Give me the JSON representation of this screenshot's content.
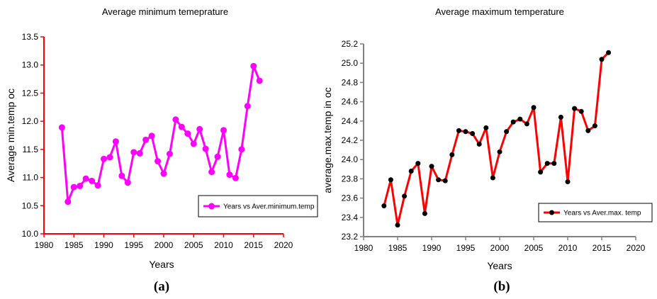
{
  "chart_data": [
    {
      "type": "line",
      "title": "Average minimum temeprature",
      "xlabel": "Years",
      "ylabel": "Average min.temp oc",
      "xlim": [
        1980,
        2020
      ],
      "ylim": [
        10.0,
        13.5
      ],
      "xticks": [
        "1980",
        "1985",
        "1990",
        "1995",
        "2000",
        "2005",
        "2010",
        "2015",
        "2020"
      ],
      "yticks": [
        "10.0",
        "10.5",
        "11.0",
        "11.5",
        "12.0",
        "12.5",
        "13.0",
        "13.5"
      ],
      "grid": false,
      "legend_position": "lower-right",
      "color": "#ff00ff",
      "axis_color": "#ff0000",
      "marker": "circle",
      "caption": "(a)",
      "series": [
        {
          "name": "Years vs Aver.minimum.temp",
          "x": [
            1983,
            1984,
            1985,
            1986,
            1987,
            1988,
            1989,
            1990,
            1991,
            1992,
            1993,
            1994,
            1995,
            1996,
            1997,
            1998,
            1999,
            2000,
            2001,
            2002,
            2003,
            2004,
            2005,
            2006,
            2007,
            2008,
            2009,
            2010,
            2011,
            2012,
            2013,
            2014,
            2015,
            2016
          ],
          "y": [
            11.89,
            10.57,
            10.83,
            10.85,
            10.98,
            10.94,
            10.86,
            11.33,
            11.36,
            11.64,
            11.03,
            10.91,
            11.45,
            11.43,
            11.67,
            11.74,
            11.29,
            11.07,
            11.42,
            12.03,
            11.9,
            11.78,
            11.6,
            11.86,
            11.51,
            11.1,
            11.37,
            11.84,
            11.05,
            10.99,
            11.5,
            12.27,
            12.98,
            12.72
          ]
        }
      ]
    },
    {
      "type": "line",
      "title": "Average maximum temperature",
      "xlabel": "Years",
      "ylabel": "average.max.temp in oc",
      "xlim": [
        1980,
        2020
      ],
      "ylim": [
        23.2,
        25.2
      ],
      "xticks": [
        "1980",
        "1985",
        "1990",
        "1995",
        "2000",
        "2005",
        "2010",
        "2015",
        "2020"
      ],
      "yticks": [
        "23.2",
        "23.4",
        "23.6",
        "23.8",
        "24.0",
        "24.2",
        "24.4",
        "24.6",
        "24.8",
        "25.0",
        "25.2"
      ],
      "grid": false,
      "legend_position": "lower-right",
      "color": "#ff0000",
      "marker_color": "#000000",
      "axis_color": "#808080",
      "marker": "circle",
      "caption": "(b)",
      "series": [
        {
          "name": "Years vs Aver.max. temp",
          "x": [
            1983,
            1984,
            1985,
            1986,
            1987,
            1988,
            1989,
            1990,
            1991,
            1992,
            1993,
            1994,
            1995,
            1996,
            1997,
            1998,
            1999,
            2000,
            2001,
            2002,
            2003,
            2004,
            2005,
            2006,
            2007,
            2008,
            2009,
            2010,
            2011,
            2012,
            2013,
            2014,
            2015,
            2016
          ],
          "y": [
            23.52,
            23.79,
            23.32,
            23.62,
            23.88,
            23.96,
            23.44,
            23.93,
            23.79,
            23.78,
            24.05,
            24.3,
            24.29,
            24.27,
            24.16,
            24.33,
            23.81,
            24.08,
            24.29,
            24.39,
            24.42,
            24.37,
            24.54,
            23.87,
            23.96,
            23.96,
            24.44,
            23.77,
            24.53,
            24.5,
            24.3,
            24.35,
            25.04,
            25.11
          ]
        }
      ]
    }
  ]
}
